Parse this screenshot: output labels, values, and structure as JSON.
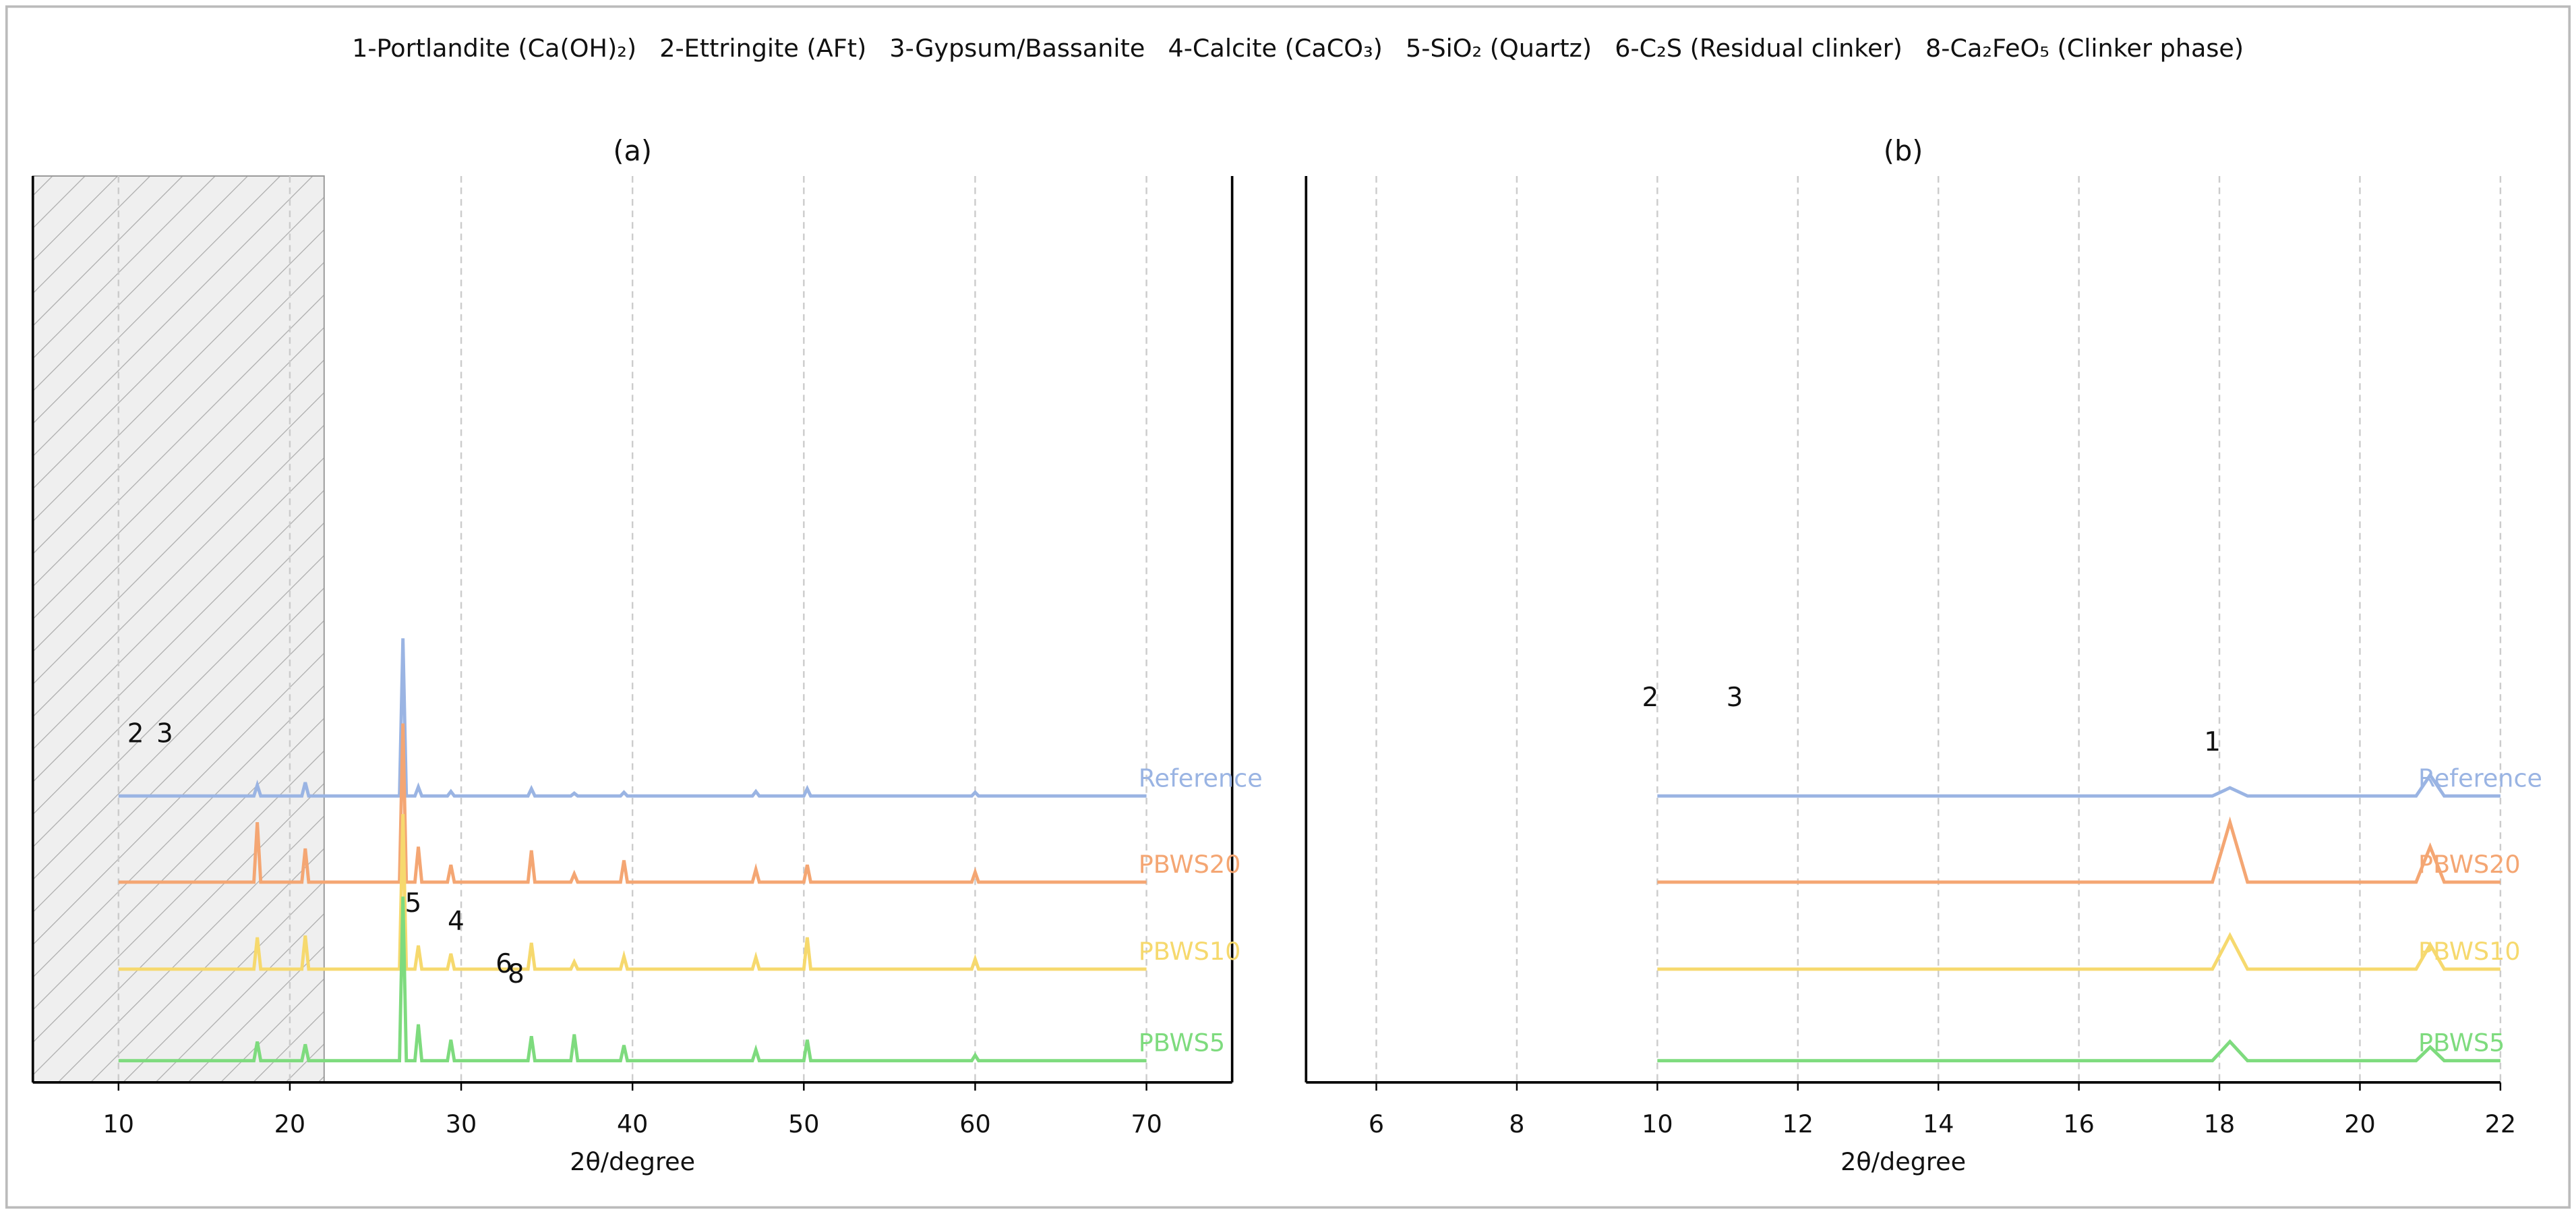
{
  "legend_items": [
    "1-Portlandite (Ca(OH)₂)",
    "2-Ettringite (AFt)",
    "3-Gypsum/Bassanite",
    "4-Calcite (CaCO₃)",
    "5-SiO₂ (Quartz)",
    "6-C₂S (Residual clinker)",
    "8-Ca₂FeO₅ (Clinker phase)"
  ],
  "chart_data": [
    {
      "type": "line",
      "title": "(a)",
      "x_label": "2θ/degree",
      "xlim": [
        5,
        75
      ],
      "xticks": [
        10,
        20,
        30,
        40,
        50,
        60,
        70
      ],
      "ylim": [
        0,
        100
      ],
      "grid": true,
      "highlight_range": [
        5,
        22
      ],
      "x": [
        10,
        17.9,
        18.1,
        18.3,
        20.7,
        20.9,
        21.1,
        26.4,
        26.6,
        26.8,
        27.3,
        27.5,
        27.7,
        29.2,
        29.4,
        29.6,
        33.9,
        34.1,
        34.3,
        36.4,
        36.6,
        36.8,
        39.3,
        39.5,
        39.7,
        47.0,
        47.2,
        47.4,
        50.0,
        50.2,
        50.4,
        59.8,
        60.0,
        60.2,
        70
      ],
      "series": [
        {
          "name": "Reference",
          "color": "#9ab4e3",
          "values": [
            31.6,
            31.6,
            32.8,
            31.6,
            31.6,
            33.1,
            31.6,
            31.6,
            49,
            31.6,
            31.6,
            32.6,
            31.6,
            31.6,
            32.1,
            31.6,
            31.6,
            32.4,
            31.6,
            31.6,
            31.9,
            31.6,
            31.6,
            32.0,
            31.6,
            31.6,
            32.1,
            31.6,
            31.6,
            32.4,
            31.6,
            31.6,
            32.0,
            31.6,
            31.6
          ]
        },
        {
          "name": "PBWS20",
          "color": "#f4a673",
          "values": [
            22.1,
            22.1,
            28.7,
            22.1,
            22.1,
            25.8,
            22.1,
            22.1,
            39.6,
            22.1,
            22.1,
            26.0,
            22.1,
            22.1,
            24.0,
            22.1,
            22.1,
            25.6,
            22.1,
            22.1,
            23.0,
            22.1,
            22.1,
            24.5,
            22.1,
            22.1,
            23.5,
            22.1,
            22.1,
            24.0,
            22.1,
            22.1,
            23.2,
            22.1,
            22.1
          ]
        },
        {
          "name": "PBWS10",
          "color": "#f6d96e",
          "values": [
            12.5,
            12.5,
            16.0,
            12.5,
            12.5,
            16.2,
            12.5,
            12.5,
            29.6,
            12.5,
            12.5,
            15.1,
            12.5,
            12.5,
            14.2,
            12.5,
            12.5,
            15.4,
            12.5,
            12.5,
            13.3,
            12.5,
            12.5,
            13.9,
            12.5,
            12.5,
            13.8,
            12.5,
            12.5,
            16.0,
            12.5,
            12.5,
            13.6,
            12.5,
            12.5
          ]
        },
        {
          "name": "PBWS5",
          "color": "#7edb7e",
          "values": [
            2.4,
            2.4,
            4.5,
            2.4,
            2.4,
            4.2,
            2.4,
            2.4,
            20.5,
            2.4,
            2.4,
            6.4,
            2.4,
            2.4,
            4.7,
            2.4,
            2.4,
            5.1,
            2.4,
            2.4,
            5.3,
            2.4,
            2.4,
            4.1,
            2.4,
            2.4,
            3.6,
            2.4,
            2.4,
            4.7,
            2.4,
            2.4,
            3.0,
            2.4,
            2.4
          ]
        }
      ],
      "annotations": [
        {
          "text": "2",
          "x": 11,
          "y": 38.3
        },
        {
          "text": "3",
          "x": 12.7,
          "y": 38.3
        },
        {
          "text": "5",
          "x": 27.2,
          "y": 19.6
        },
        {
          "text": "4",
          "x": 29.7,
          "y": 17.6
        },
        {
          "text": "6",
          "x": 32.5,
          "y": 12.9
        },
        {
          "text": "8",
          "x": 33.2,
          "y": 11.8
        }
      ]
    },
    {
      "type": "line",
      "title": "(b)",
      "x_label": "2θ/degree",
      "xlim": [
        5,
        22
      ],
      "xticks": [
        6,
        8,
        10,
        12,
        14,
        16,
        18,
        20,
        22
      ],
      "ylim": [
        0,
        100
      ],
      "grid": true,
      "x": [
        10,
        17.9,
        18.15,
        18.4,
        20.8,
        21.0,
        21.2,
        22
      ],
      "series": [
        {
          "name": "Reference",
          "color": "#9ab4e3",
          "values": [
            31.6,
            31.6,
            32.5,
            31.6,
            31.6,
            33.9,
            31.6,
            31.6
          ]
        },
        {
          "name": "PBWS20",
          "color": "#f4a673",
          "values": [
            22.1,
            22.1,
            28.7,
            22.1,
            22.1,
            26.0,
            22.1,
            22.1
          ]
        },
        {
          "name": "PBWS10",
          "color": "#f6d96e",
          "values": [
            12.5,
            12.5,
            16.2,
            12.5,
            12.5,
            15.2,
            12.5,
            12.5
          ]
        },
        {
          "name": "PBWS5",
          "color": "#7edb7e",
          "values": [
            2.4,
            2.4,
            4.5,
            2.4,
            2.4,
            3.9,
            2.4,
            2.4
          ]
        }
      ],
      "annotations": [
        {
          "text": "2",
          "x": 9.9,
          "y": 42.3
        },
        {
          "text": "3",
          "x": 11.1,
          "y": 42.3
        },
        {
          "text": "1",
          "x": 17.9,
          "y": 37.4
        }
      ]
    }
  ]
}
